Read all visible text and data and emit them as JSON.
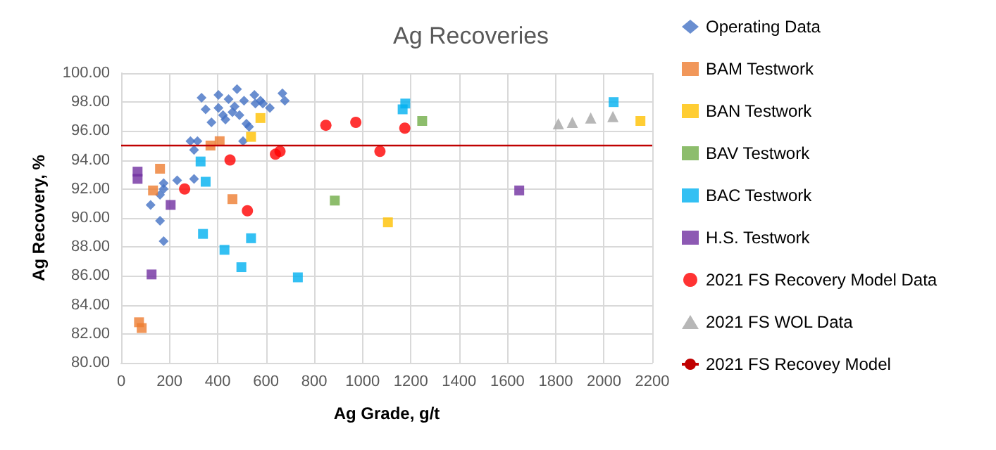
{
  "chart_data": {
    "type": "scatter",
    "title": "Ag Recoveries",
    "xlabel": "Ag Grade, g/t",
    "ylabel": "Ag Recovery, %",
    "xlim": [
      0,
      2200
    ],
    "xticks": [
      0,
      200,
      400,
      600,
      800,
      1000,
      1200,
      1400,
      1600,
      1800,
      2000,
      2200
    ],
    "ylim": [
      80,
      100
    ],
    "yticks": [
      {
        "value": 80,
        "label": "80.00"
      },
      {
        "value": 82,
        "label": "82.00"
      },
      {
        "value": 84,
        "label": "84.00"
      },
      {
        "value": 86,
        "label": "86.00"
      },
      {
        "value": 88,
        "label": "88.00"
      },
      {
        "value": 90,
        "label": "90.00"
      },
      {
        "value": 92,
        "label": "92.00"
      },
      {
        "value": 94,
        "label": "94.00"
      },
      {
        "value": 96,
        "label": "96.00"
      },
      {
        "value": 98,
        "label": "98.00"
      },
      {
        "value": 100,
        "label": "100.00"
      }
    ],
    "grid": true,
    "legend": "right",
    "series": [
      {
        "name": "Operating Data",
        "color": "#4472c4",
        "marker": "diamond",
        "x": [
          333,
          403,
          480,
          552,
          668,
          678,
          350,
          445,
          509,
          577,
          616,
          403,
          422,
          461,
          490,
          374,
          432,
          519,
          530,
          287,
          316,
          302,
          505,
          176,
          176,
          232,
          302,
          161,
          122,
          161,
          176,
          556,
          587,
          470
        ],
        "values": [
          98.3,
          98.5,
          98.9,
          98.5,
          98.6,
          98.1,
          97.5,
          98.2,
          98.1,
          98.1,
          97.6,
          97.6,
          97.1,
          97.3,
          97.1,
          96.6,
          96.8,
          96.5,
          96.3,
          95.3,
          95.3,
          94.7,
          95.3,
          92.4,
          92.0,
          92.6,
          92.7,
          91.6,
          90.9,
          89.8,
          88.4,
          97.9,
          97.9,
          97.7
        ]
      },
      {
        "name": "BAM Testwork",
        "color": "#ed7d31",
        "marker": "square",
        "x": [
          161,
          132,
          370,
          408,
          461,
          74,
          85
        ],
        "values": [
          93.4,
          91.9,
          95.0,
          95.3,
          91.3,
          82.8,
          82.4
        ]
      },
      {
        "name": "BAN Testwork",
        "color": "#ffc000",
        "marker": "square",
        "x": [
          577,
          538,
          1105,
          2151
        ],
        "values": [
          96.9,
          95.6,
          89.7,
          96.7
        ]
      },
      {
        "name": "BAV Testwork",
        "color": "#70ad47",
        "marker": "square",
        "x": [
          1247,
          885
        ],
        "values": [
          96.7,
          91.2
        ]
      },
      {
        "name": "BAC Testwork",
        "color": "#00b0f0",
        "marker": "square",
        "x": [
          329,
          350,
          339,
          428,
          538,
          498,
          732,
          1177,
          1166,
          2040
        ],
        "values": [
          93.9,
          92.5,
          88.9,
          87.8,
          88.6,
          86.6,
          85.9,
          97.9,
          97.5,
          98.0
        ]
      },
      {
        "name": "H.S. Testwork",
        "color": "#7030a0",
        "marker": "square",
        "x": [
          68,
          68,
          205,
          126,
          1649
        ],
        "values": [
          93.2,
          92.7,
          90.9,
          86.1,
          91.9
        ]
      },
      {
        "name": "2021 FS Recovery Model Data",
        "color": "#ff0000",
        "marker": "circle",
        "x": [
          263,
          451,
          523,
          639,
          658,
          848,
          972,
          1072,
          1175
        ],
        "values": [
          92.0,
          94.0,
          90.5,
          94.4,
          94.6,
          96.4,
          96.6,
          94.6,
          96.2
        ]
      },
      {
        "name": "2021 FS WOL Data",
        "color": "#a5a5a5",
        "marker": "triangle",
        "x": [
          1811,
          1869,
          1945,
          2037
        ],
        "values": [
          96.5,
          96.6,
          96.9,
          97.0
        ]
      }
    ],
    "ref_lines": [
      {
        "axis": "y",
        "value": 95,
        "label": "2021 FS Recovey Model",
        "color": "#c00000",
        "line_style": "solid"
      }
    ]
  }
}
